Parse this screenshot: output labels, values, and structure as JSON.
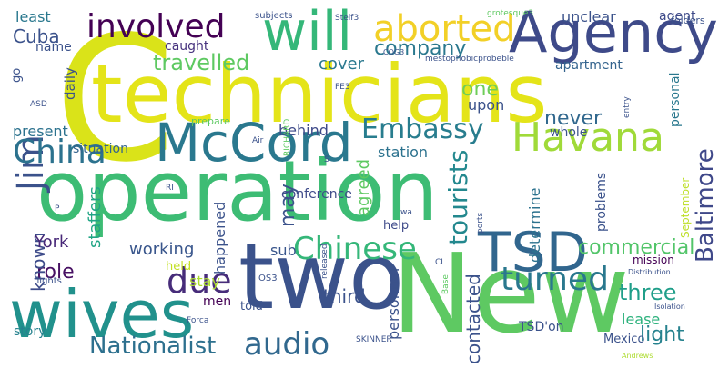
{
  "words": [
    {
      "text": "technicians",
      "color": "#e4e419"
    },
    {
      "text": "operation",
      "color": "#3dbc74"
    },
    {
      "text": "New",
      "color": "#5ec962"
    },
    {
      "text": "C",
      "color": "#dae319"
    },
    {
      "text": "two",
      "color": "#3b528b"
    },
    {
      "text": "wives",
      "color": "#21918c"
    },
    {
      "text": "Agency",
      "color": "#3e4a89"
    },
    {
      "text": "McCord",
      "color": "#2a788e"
    },
    {
      "text": "will",
      "color": "#35b779"
    },
    {
      "text": "Havana",
      "color": "#a0da39"
    },
    {
      "text": "TSD",
      "color": "#31668e"
    },
    {
      "text": "involved",
      "color": "#440154"
    },
    {
      "text": "aborted",
      "color": "#f2d027"
    },
    {
      "text": "Jim",
      "color": "#3b528b"
    },
    {
      "text": "China",
      "color": "#2c728e"
    },
    {
      "text": "turned",
      "color": "#2a788e"
    },
    {
      "text": "Chinese",
      "color": "#35b779"
    },
    {
      "text": "Embassy",
      "color": "#287d8e"
    },
    {
      "text": "due",
      "color": "#472c7a"
    },
    {
      "text": "audio",
      "color": "#31688e"
    },
    {
      "text": "Nationalist",
      "color": "#2d708e"
    },
    {
      "text": "travelled",
      "color": "#5ec962"
    },
    {
      "text": "tourists",
      "color": "#23888e"
    },
    {
      "text": "company",
      "color": "#2a788e"
    },
    {
      "text": "Baltimore",
      "color": "#3f4889"
    },
    {
      "text": "commercial",
      "color": "#52c569"
    },
    {
      "text": "three",
      "color": "#1f9e89"
    },
    {
      "text": "never",
      "color": "#31688e"
    },
    {
      "text": "role",
      "color": "#471063"
    },
    {
      "text": "Cuba",
      "color": "#3b528b"
    },
    {
      "text": "working",
      "color": "#39568c"
    },
    {
      "text": "light",
      "color": "#26828e"
    },
    {
      "text": "known",
      "color": "#3e4c8a"
    },
    {
      "text": "one",
      "color": "#6ece58"
    },
    {
      "text": "may",
      "color": "#3b528b"
    },
    {
      "text": "York",
      "color": "#482878"
    },
    {
      "text": "lease",
      "color": "#2db27d"
    },
    {
      "text": "third",
      "color": "#3b528b"
    },
    {
      "text": "cover",
      "color": "#2a788e"
    },
    {
      "text": "unclear",
      "color": "#3b528b"
    },
    {
      "text": "agent",
      "color": "#3e4a89"
    },
    {
      "text": "caught",
      "color": "#46327e"
    },
    {
      "text": "apartment",
      "color": "#33638d"
    },
    {
      "text": "contacted",
      "color": "#3b528b"
    },
    {
      "text": "station",
      "color": "#2c728e"
    },
    {
      "text": "behind",
      "color": "#3e4a89"
    },
    {
      "text": "upon",
      "color": "#3b528b"
    },
    {
      "text": "agreed",
      "color": "#5ec962"
    },
    {
      "text": "sub",
      "color": "#39568c"
    },
    {
      "text": "happened",
      "color": "#3b528b"
    },
    {
      "text": "staffers",
      "color": "#21a585"
    },
    {
      "text": "present",
      "color": "#2c728e"
    },
    {
      "text": "situation",
      "color": "#33638d"
    },
    {
      "text": "conference",
      "color": "#3e4a89"
    },
    {
      "text": "personnel",
      "color": "#3b528b"
    },
    {
      "text": "told",
      "color": "#3b528b"
    },
    {
      "text": "stay",
      "color": "#addc30"
    },
    {
      "text": "men",
      "color": "#440154"
    },
    {
      "text": "story",
      "color": "#26828e"
    },
    {
      "text": "determine",
      "color": "#2c728e"
    },
    {
      "text": "whole",
      "color": "#3b528b"
    },
    {
      "text": "problems",
      "color": "#3b528b"
    },
    {
      "text": "personal",
      "color": "#2a788e"
    },
    {
      "text": "TSD'on",
      "color": "#3b528b"
    },
    {
      "text": "Mexico",
      "color": "#3b528b"
    },
    {
      "text": "least",
      "color": "#2a788e"
    },
    {
      "text": "name",
      "color": "#3b528b"
    },
    {
      "text": "daily",
      "color": "#3b528b"
    },
    {
      "text": "go",
      "color": "#3b528b"
    },
    {
      "text": "help",
      "color": "#3e4a89"
    },
    {
      "text": "held",
      "color": "#c2df23"
    },
    {
      "text": "September",
      "color": "#bddf26"
    },
    {
      "text": "mission",
      "color": "#440154"
    },
    {
      "text": "prepare",
      "color": "#5ec962"
    },
    {
      "text": "folders",
      "color": "#3b528b"
    },
    {
      "text": "subjects",
      "color": "#3b528b"
    },
    {
      "text": "Stelf3",
      "color": "#3b528b"
    },
    {
      "text": "grotesque3",
      "color": "#5ec962"
    },
    {
      "text": "COG3",
      "color": "#3b528b"
    },
    {
      "text": "mestophobicprobeble",
      "color": "#3b528b"
    },
    {
      "text": "ASD",
      "color": "#3b528b"
    },
    {
      "text": "RICHARD",
      "color": "#5ec962"
    },
    {
      "text": "Air",
      "color": "#3b528b"
    },
    {
      "text": "FE3",
      "color": "#3b528b"
    },
    {
      "text": "entry",
      "color": "#3b528b"
    },
    {
      "text": "S",
      "color": "#3b528b"
    },
    {
      "text": "RI",
      "color": "#3b528b"
    },
    {
      "text": "P",
      "color": "#3b528b"
    },
    {
      "text": "wa",
      "color": "#3b528b"
    },
    {
      "text": "ports",
      "color": "#3b528b"
    },
    {
      "text": "released",
      "color": "#3b528b"
    },
    {
      "text": "CI",
      "color": "#3b528b"
    },
    {
      "text": "Base",
      "color": "#5ec962"
    },
    {
      "text": "Distribution",
      "color": "#3b528b"
    },
    {
      "text": "flights",
      "color": "#3b528b"
    },
    {
      "text": "OS3",
      "color": "#3b528b"
    },
    {
      "text": "Forca",
      "color": "#3b528b"
    },
    {
      "text": "SKINNER",
      "color": "#3b528b"
    },
    {
      "text": "Isolation",
      "color": "#3b528b"
    },
    {
      "text": "Andrews",
      "color": "#addc30"
    }
  ]
}
